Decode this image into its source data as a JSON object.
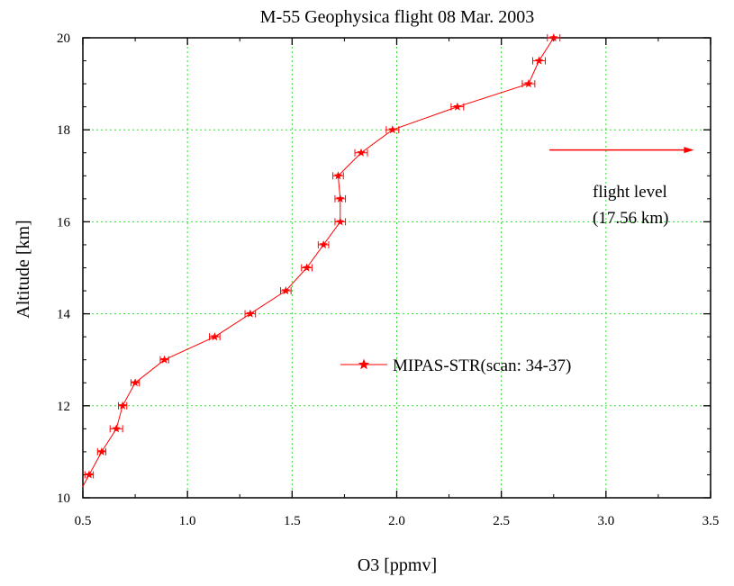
{
  "chart_data": {
    "type": "line",
    "title": "M-55 Geophysica flight 08 Mar. 2003",
    "xlabel": "O3 [ppmv]",
    "ylabel": "Altitude [km]",
    "xlim": [
      0.5,
      3.5
    ],
    "ylim": [
      10,
      20
    ],
    "xticks": [
      "0.5",
      "1.0",
      "1.5",
      "2.0",
      "2.5",
      "3.0",
      "3.5"
    ],
    "yticks": [
      "10",
      "12",
      "14",
      "16",
      "18",
      "20"
    ],
    "grid": true,
    "legend_placement": "center-right",
    "color": "#ff0000",
    "grid_color": "#33dd33",
    "series": [
      {
        "name": "MIPAS-STR(scan: 34-37)",
        "marker": "star",
        "x": [
          0.53,
          0.59,
          0.66,
          0.69,
          0.75,
          0.89,
          1.13,
          1.3,
          1.47,
          1.57,
          1.65,
          1.73,
          1.73,
          1.72,
          1.83,
          1.98,
          2.29,
          2.63,
          2.68,
          2.75
        ],
        "y": [
          10.5,
          11.0,
          11.5,
          12.0,
          12.5,
          13.0,
          13.5,
          14.0,
          14.5,
          15.0,
          15.5,
          16.0,
          16.5,
          17.0,
          17.5,
          18.0,
          18.5,
          19.0,
          19.5,
          20.0
        ],
        "x_error": [
          0.02,
          0.02,
          0.03,
          0.02,
          0.02,
          0.02,
          0.025,
          0.025,
          0.025,
          0.025,
          0.025,
          0.025,
          0.025,
          0.025,
          0.03,
          0.03,
          0.03,
          0.03,
          0.03,
          0.03
        ]
      }
    ],
    "annotation": {
      "lines": [
        "flight level",
        "(17.56 km)"
      ],
      "arrow_from": [
        2.73,
        17.56
      ],
      "arrow_to": [
        3.42,
        17.56
      ]
    }
  }
}
